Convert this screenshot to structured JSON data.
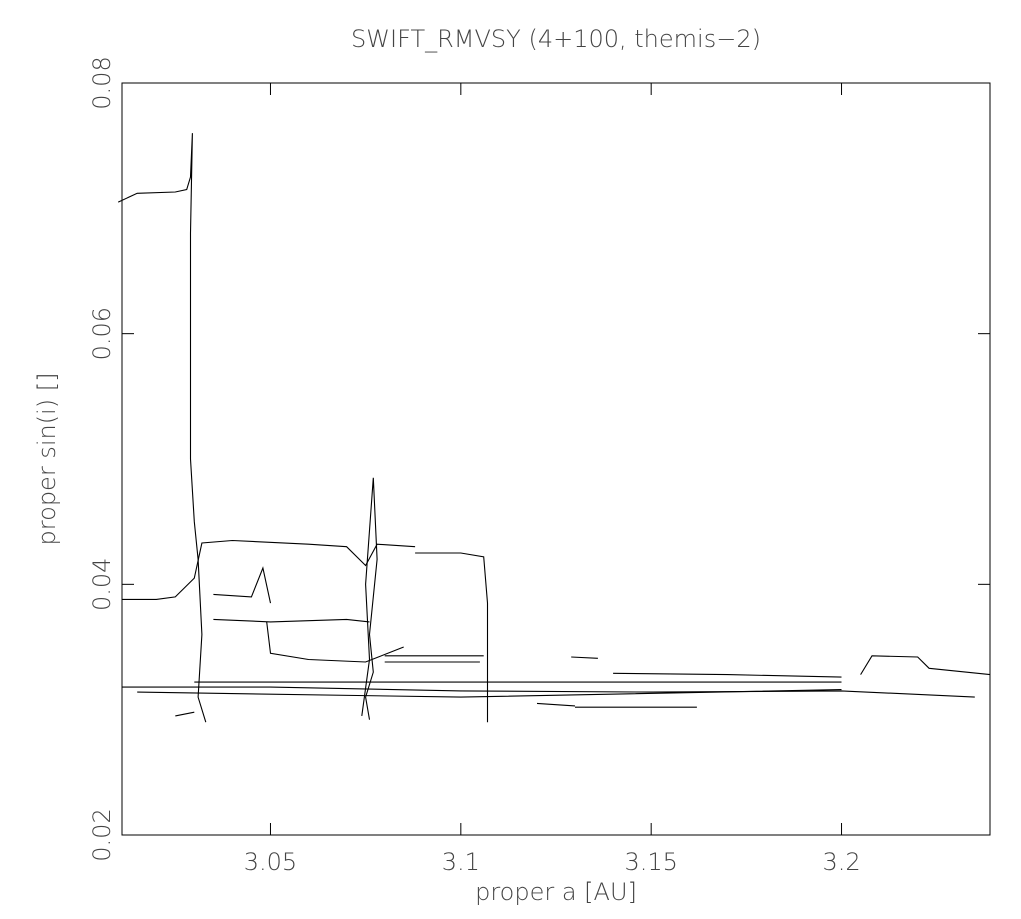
{
  "chart_data": {
    "type": "line",
    "title": "SWIFT_RMVSY (4+100, themis−2)",
    "xlabel": "proper a [AU]",
    "ylabel": "proper sin(i) []",
    "xlim": [
      3.011,
      3.239
    ],
    "ylim": [
      0.02,
      0.08
    ],
    "xticks": [
      3.05,
      3.1,
      3.15,
      3.2
    ],
    "yticks": [
      0.02,
      0.04,
      0.06,
      0.08
    ],
    "series": [
      {
        "color": "#000000",
        "x": [
          3.01,
          3.015,
          3.025,
          3.028,
          3.029,
          3.0295,
          3.029,
          3.029,
          3.029,
          3.03,
          3.031,
          3.032,
          3.031,
          3.033
        ],
        "values": [
          0.0705,
          0.0712,
          0.0713,
          0.0715,
          0.0725,
          0.076,
          0.068,
          0.058,
          0.05,
          0.045,
          0.042,
          0.036,
          0.031,
          0.029
        ]
      },
      {
        "color": "#000000",
        "x": [
          3.011,
          3.02,
          3.025,
          3.03,
          3.032,
          3.04,
          3.06,
          3.07,
          3.075,
          3.078,
          3.088
        ],
        "values": [
          0.0388,
          0.0388,
          0.039,
          0.0405,
          0.0433,
          0.0435,
          0.0432,
          0.043,
          0.0415,
          0.0432,
          0.043
        ]
      },
      {
        "color": "#000000",
        "x": [
          3.035,
          3.045,
          3.048,
          3.05
        ],
        "values": [
          0.0392,
          0.039,
          0.0413,
          0.0385
        ]
      },
      {
        "color": "#000000",
        "x": [
          3.035,
          3.05,
          3.07,
          3.076
        ],
        "values": [
          0.0372,
          0.037,
          0.0372,
          0.037
        ]
      },
      {
        "color": "#000000",
        "x": [
          3.049,
          3.05,
          3.06,
          3.075,
          3.085
        ],
        "values": [
          0.037,
          0.0345,
          0.034,
          0.0338,
          0.035
        ]
      },
      {
        "color": "#000000",
        "x": [
          3.088,
          3.1,
          3.106,
          3.107,
          3.107,
          3.107
        ],
        "values": [
          0.0425,
          0.0425,
          0.0422,
          0.0385,
          0.032,
          0.029
        ]
      },
      {
        "color": "#000000",
        "x": [
          3.074,
          3.076,
          3.075,
          3.077,
          3.078,
          3.076,
          3.077,
          3.075,
          3.076
        ],
        "values": [
          0.0295,
          0.034,
          0.04,
          0.0485,
          0.042,
          0.036,
          0.033,
          0.031,
          0.0292
        ]
      },
      {
        "color": "#000000",
        "x": [
          3.011,
          3.05,
          3.1,
          3.15,
          3.2,
          3.235
        ],
        "values": [
          0.0318,
          0.0318,
          0.0315,
          0.0314,
          0.0315,
          0.031
        ]
      },
      {
        "color": "#000000",
        "x": [
          3.015,
          3.1,
          3.2
        ],
        "values": [
          0.0314,
          0.031,
          0.0316
        ]
      },
      {
        "color": "#000000",
        "x": [
          3.03,
          3.1,
          3.2
        ],
        "values": [
          0.0322,
          0.0322,
          0.0322
        ]
      },
      {
        "color": "#000000",
        "x": [
          3.08,
          3.105
        ],
        "values": [
          0.0338,
          0.0338
        ]
      },
      {
        "color": "#000000",
        "x": [
          3.08,
          3.106
        ],
        "values": [
          0.0343,
          0.0343
        ]
      },
      {
        "color": "#000000",
        "x": [
          3.129,
          3.136
        ],
        "values": [
          0.0342,
          0.0341
        ]
      },
      {
        "color": "#000000",
        "x": [
          3.205,
          3.208,
          3.22,
          3.223,
          3.239
        ],
        "values": [
          0.0328,
          0.0343,
          0.0342,
          0.0333,
          0.0328
        ]
      },
      {
        "color": "#000000",
        "x": [
          3.14,
          3.17,
          3.2
        ],
        "values": [
          0.0329,
          0.0328,
          0.0326
        ]
      },
      {
        "color": "#000000",
        "x": [
          3.13,
          3.162
        ],
        "values": [
          0.0302,
          0.0302
        ]
      },
      {
        "color": "#000000",
        "x": [
          3.025,
          3.03
        ],
        "values": [
          0.0295,
          0.0298
        ]
      },
      {
        "color": "#000000",
        "x": [
          3.12,
          3.13
        ],
        "values": [
          0.0305,
          0.0303
        ]
      }
    ]
  }
}
